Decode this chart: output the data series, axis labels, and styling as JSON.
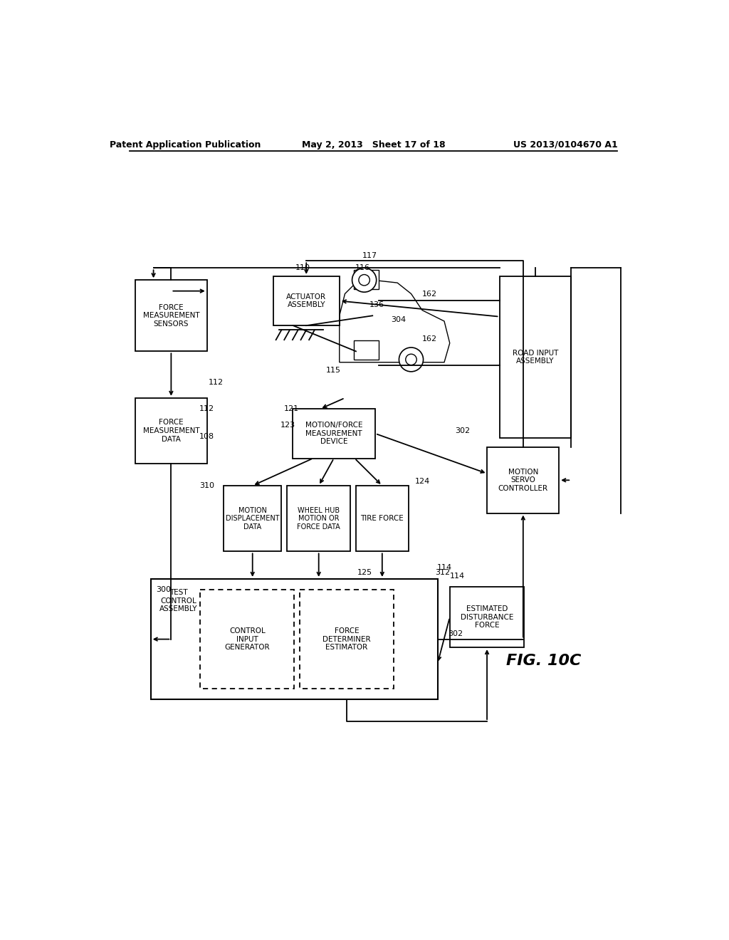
{
  "title_left": "Patent Application Publication",
  "title_mid": "May 2, 2013   Sheet 17 of 18",
  "title_right": "US 2013/0104670 A1",
  "fig_label": "FIG. 10C",
  "bg_color": "#ffffff"
}
